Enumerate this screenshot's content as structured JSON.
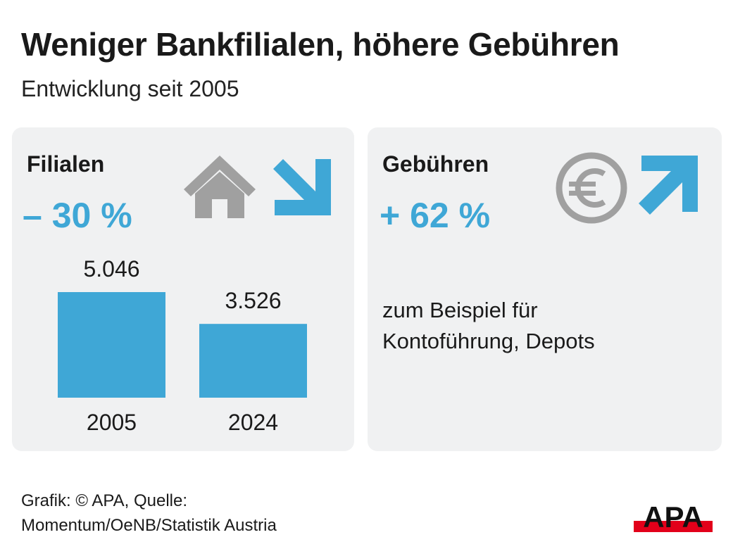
{
  "title": "Weniger Bankfilialen, höhere Gebühren",
  "subtitle": "Entwicklung seit 2005",
  "colors": {
    "accent": "#3fa7d6",
    "panel_bg": "#f0f1f2",
    "icon_gray": "#a0a0a0",
    "logo_red": "#e2001a"
  },
  "left_panel": {
    "heading": "Filialen",
    "change": "– 30 %",
    "icons": [
      "house-icon",
      "arrow-down-right-icon"
    ]
  },
  "right_panel": {
    "heading": "Gebühren",
    "change": "+ 62 %",
    "icons": [
      "euro-icon",
      "arrow-up-right-icon"
    ],
    "note_line1": "zum Beispiel für",
    "note_line2": "Kontoführung, Depots"
  },
  "chart_data": {
    "type": "bar",
    "categories": [
      "2005",
      "2024"
    ],
    "values": [
      5046,
      3526
    ],
    "value_labels": [
      "5.046",
      "3.526"
    ],
    "ylim": [
      0,
      5046
    ]
  },
  "footer": {
    "line1": "Grafik: © APA, Quelle:",
    "line2": "Momentum/OeNB/Statistik Austria"
  },
  "logo": {
    "text": "APA"
  }
}
